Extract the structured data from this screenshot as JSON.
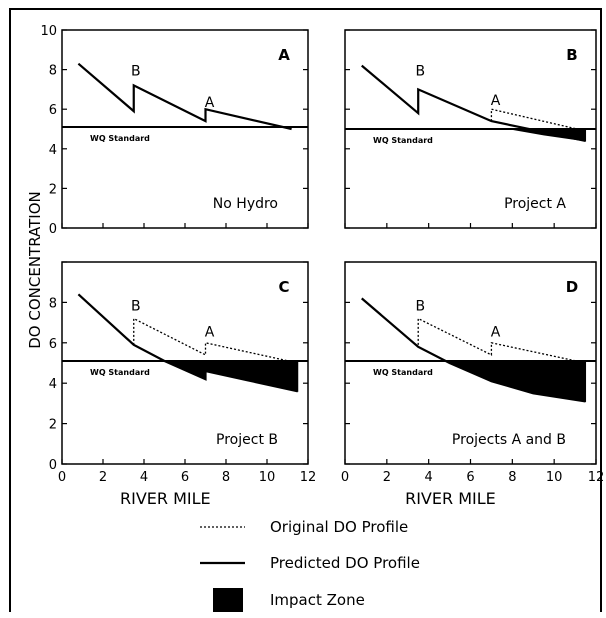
{
  "figure": {
    "ylabel": "DO CONCENTRATION",
    "legend": [
      {
        "label": "Original DO Profile",
        "style": "dotted"
      },
      {
        "label": "Predicted DO Profile",
        "style": "solid"
      },
      {
        "label": "Impact Zone",
        "style": "filled"
      }
    ],
    "colors": {
      "ink": "#000000",
      "background": "#ffffff"
    }
  },
  "chart_data": [
    {
      "type": "line",
      "panel_letter": "A",
      "caption": "No Hydro",
      "standard_label": "WQ Standard",
      "standard_value": 5.1,
      "xlabel": "",
      "xlim": [
        0,
        12
      ],
      "ylim": [
        0,
        10
      ],
      "x_ticks": [],
      "y_ticks": [
        "0",
        "2",
        "4",
        "6",
        "8",
        "10"
      ],
      "point_labels": [
        {
          "text": "B",
          "x": 3.6,
          "y": 7.7
        },
        {
          "text": "A",
          "x": 7.2,
          "y": 6.1
        }
      ],
      "series": [
        {
          "style": "solid",
          "x": [
            0.8,
            3.5,
            3.5,
            7.0,
            7.0,
            11.2
          ],
          "y": [
            8.3,
            5.9,
            7.2,
            5.4,
            6.0,
            5.0
          ]
        }
      ],
      "impact": []
    },
    {
      "type": "line",
      "panel_letter": "B",
      "caption": "Project A",
      "standard_label": "WQ Standard",
      "standard_value": 5.0,
      "xlabel": "",
      "xlim": [
        0,
        12
      ],
      "ylim": [
        0,
        10
      ],
      "x_ticks": [],
      "y_ticks": [],
      "point_labels": [
        {
          "text": "B",
          "x": 3.6,
          "y": 7.7
        },
        {
          "text": "A",
          "x": 7.2,
          "y": 6.2
        }
      ],
      "series": [
        {
          "style": "dotted",
          "x": [
            7.0,
            7.0,
            11.5
          ],
          "y": [
            5.4,
            6.0,
            4.9
          ]
        },
        {
          "style": "solid",
          "x": [
            0.8,
            3.5,
            3.5,
            7.0,
            11.5
          ],
          "y": [
            8.2,
            5.8,
            7.0,
            5.4,
            4.4
          ]
        }
      ],
      "impact": [
        {
          "x": [
            7.9,
            9.5,
            11.5
          ],
          "y": [
            5.0,
            4.7,
            4.4
          ]
        }
      ]
    },
    {
      "type": "line",
      "panel_letter": "C",
      "caption": "Project B",
      "standard_label": "WQ Standard",
      "standard_value": 5.1,
      "xlabel": "RIVER MILE",
      "xlim": [
        0,
        12
      ],
      "ylim": [
        0,
        10
      ],
      "x_ticks": [
        "0",
        "2",
        "4",
        "6",
        "8",
        "10",
        "12"
      ],
      "y_ticks": [
        "0",
        "2",
        "4",
        "6",
        "8"
      ],
      "point_labels": [
        {
          "text": "B",
          "x": 3.6,
          "y": 7.6
        },
        {
          "text": "A",
          "x": 7.2,
          "y": 6.3
        }
      ],
      "series": [
        {
          "style": "dotted",
          "x": [
            3.5,
            3.5,
            7.0,
            7.0,
            11.5
          ],
          "y": [
            5.9,
            7.2,
            5.4,
            6.0,
            5.0
          ]
        },
        {
          "style": "solid",
          "x": [
            0.8,
            3.5,
            5.0,
            7.0,
            7.0,
            11.5
          ],
          "y": [
            8.4,
            5.9,
            5.1,
            4.2,
            4.6,
            3.6
          ]
        }
      ],
      "impact": [
        {
          "x": [
            5.0,
            7.0,
            7.0,
            11.5
          ],
          "y": [
            5.1,
            4.2,
            4.6,
            3.6
          ]
        }
      ]
    },
    {
      "type": "line",
      "panel_letter": "D",
      "caption": "Projects A and B",
      "standard_label": "WQ Standard",
      "standard_value": 5.1,
      "xlabel": "RIVER MILE",
      "xlim": [
        0,
        12
      ],
      "ylim": [
        0,
        10
      ],
      "x_ticks": [
        "0",
        "2",
        "4",
        "6",
        "8",
        "10",
        "12"
      ],
      "y_ticks": [],
      "point_labels": [
        {
          "text": "B",
          "x": 3.6,
          "y": 7.6
        },
        {
          "text": "A",
          "x": 7.2,
          "y": 6.3
        }
      ],
      "series": [
        {
          "style": "dotted",
          "x": [
            3.5,
            3.5,
            7.0,
            7.0,
            11.5
          ],
          "y": [
            5.9,
            7.2,
            5.4,
            6.0,
            5.0
          ]
        },
        {
          "style": "solid",
          "x": [
            0.8,
            3.5,
            5.0,
            7.0,
            9.0,
            11.5
          ],
          "y": [
            8.2,
            5.8,
            5.0,
            4.1,
            3.5,
            3.1
          ]
        }
      ],
      "impact": [
        {
          "x": [
            5.0,
            7.0,
            9.0,
            11.5
          ],
          "y": [
            5.0,
            4.1,
            3.5,
            3.1
          ]
        }
      ]
    }
  ]
}
